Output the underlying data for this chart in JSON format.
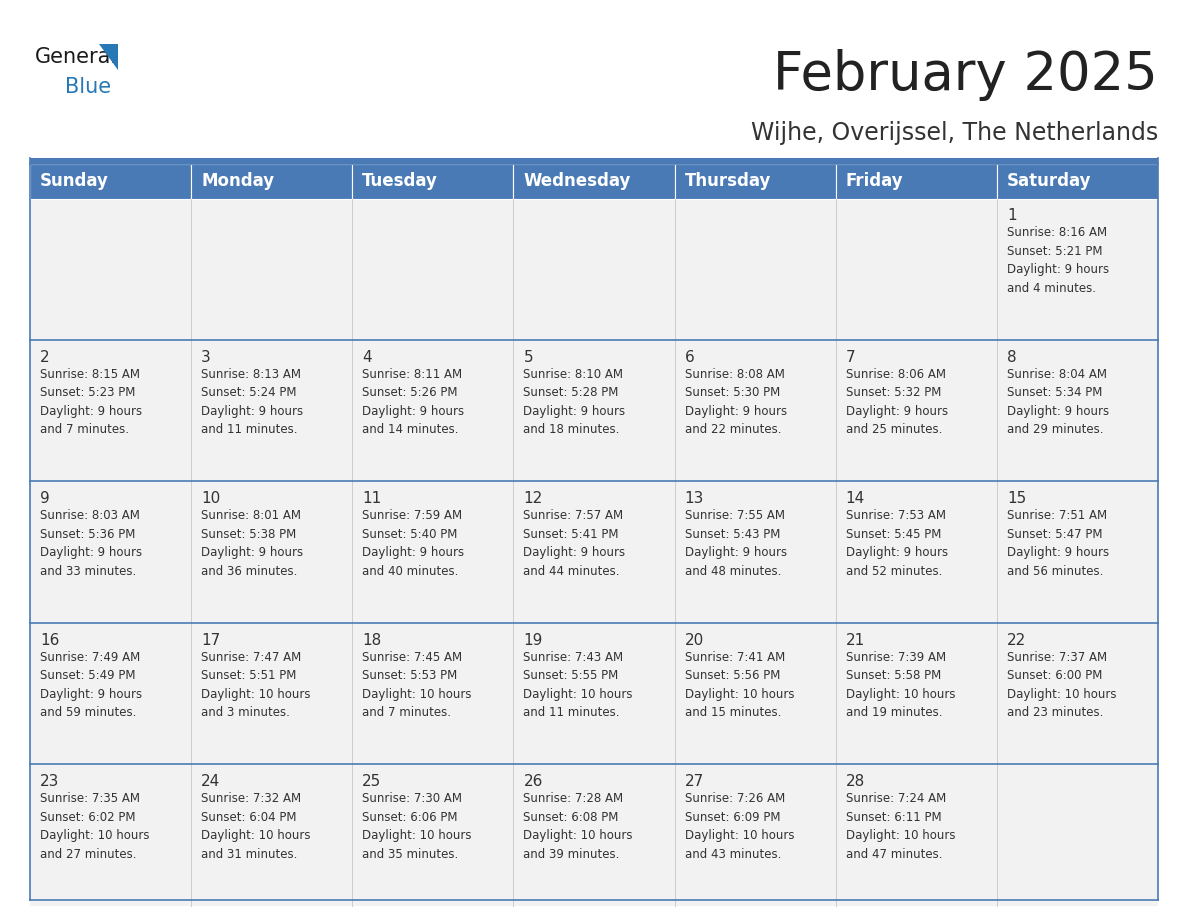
{
  "title": "February 2025",
  "subtitle": "Wijhe, Overijssel, The Netherlands",
  "header_bg": "#4a7ab5",
  "header_text_color": "#ffffff",
  "cell_bg": "#f2f2f2",
  "cell_bg_empty": "#f9f9f9",
  "border_color": "#4a7ab5",
  "row_divider_color": "#4a7ab5",
  "col_divider_color": "#cccccc",
  "text_color": "#333333",
  "day_headers": [
    "Sunday",
    "Monday",
    "Tuesday",
    "Wednesday",
    "Thursday",
    "Friday",
    "Saturday"
  ],
  "weeks": [
    [
      {
        "day": "",
        "info": ""
      },
      {
        "day": "",
        "info": ""
      },
      {
        "day": "",
        "info": ""
      },
      {
        "day": "",
        "info": ""
      },
      {
        "day": "",
        "info": ""
      },
      {
        "day": "",
        "info": ""
      },
      {
        "day": "1",
        "info": "Sunrise: 8:16 AM\nSunset: 5:21 PM\nDaylight: 9 hours\nand 4 minutes."
      }
    ],
    [
      {
        "day": "2",
        "info": "Sunrise: 8:15 AM\nSunset: 5:23 PM\nDaylight: 9 hours\nand 7 minutes."
      },
      {
        "day": "3",
        "info": "Sunrise: 8:13 AM\nSunset: 5:24 PM\nDaylight: 9 hours\nand 11 minutes."
      },
      {
        "day": "4",
        "info": "Sunrise: 8:11 AM\nSunset: 5:26 PM\nDaylight: 9 hours\nand 14 minutes."
      },
      {
        "day": "5",
        "info": "Sunrise: 8:10 AM\nSunset: 5:28 PM\nDaylight: 9 hours\nand 18 minutes."
      },
      {
        "day": "6",
        "info": "Sunrise: 8:08 AM\nSunset: 5:30 PM\nDaylight: 9 hours\nand 22 minutes."
      },
      {
        "day": "7",
        "info": "Sunrise: 8:06 AM\nSunset: 5:32 PM\nDaylight: 9 hours\nand 25 minutes."
      },
      {
        "day": "8",
        "info": "Sunrise: 8:04 AM\nSunset: 5:34 PM\nDaylight: 9 hours\nand 29 minutes."
      }
    ],
    [
      {
        "day": "9",
        "info": "Sunrise: 8:03 AM\nSunset: 5:36 PM\nDaylight: 9 hours\nand 33 minutes."
      },
      {
        "day": "10",
        "info": "Sunrise: 8:01 AM\nSunset: 5:38 PM\nDaylight: 9 hours\nand 36 minutes."
      },
      {
        "day": "11",
        "info": "Sunrise: 7:59 AM\nSunset: 5:40 PM\nDaylight: 9 hours\nand 40 minutes."
      },
      {
        "day": "12",
        "info": "Sunrise: 7:57 AM\nSunset: 5:41 PM\nDaylight: 9 hours\nand 44 minutes."
      },
      {
        "day": "13",
        "info": "Sunrise: 7:55 AM\nSunset: 5:43 PM\nDaylight: 9 hours\nand 48 minutes."
      },
      {
        "day": "14",
        "info": "Sunrise: 7:53 AM\nSunset: 5:45 PM\nDaylight: 9 hours\nand 52 minutes."
      },
      {
        "day": "15",
        "info": "Sunrise: 7:51 AM\nSunset: 5:47 PM\nDaylight: 9 hours\nand 56 minutes."
      }
    ],
    [
      {
        "day": "16",
        "info": "Sunrise: 7:49 AM\nSunset: 5:49 PM\nDaylight: 9 hours\nand 59 minutes."
      },
      {
        "day": "17",
        "info": "Sunrise: 7:47 AM\nSunset: 5:51 PM\nDaylight: 10 hours\nand 3 minutes."
      },
      {
        "day": "18",
        "info": "Sunrise: 7:45 AM\nSunset: 5:53 PM\nDaylight: 10 hours\nand 7 minutes."
      },
      {
        "day": "19",
        "info": "Sunrise: 7:43 AM\nSunset: 5:55 PM\nDaylight: 10 hours\nand 11 minutes."
      },
      {
        "day": "20",
        "info": "Sunrise: 7:41 AM\nSunset: 5:56 PM\nDaylight: 10 hours\nand 15 minutes."
      },
      {
        "day": "21",
        "info": "Sunrise: 7:39 AM\nSunset: 5:58 PM\nDaylight: 10 hours\nand 19 minutes."
      },
      {
        "day": "22",
        "info": "Sunrise: 7:37 AM\nSunset: 6:00 PM\nDaylight: 10 hours\nand 23 minutes."
      }
    ],
    [
      {
        "day": "23",
        "info": "Sunrise: 7:35 AM\nSunset: 6:02 PM\nDaylight: 10 hours\nand 27 minutes."
      },
      {
        "day": "24",
        "info": "Sunrise: 7:32 AM\nSunset: 6:04 PM\nDaylight: 10 hours\nand 31 minutes."
      },
      {
        "day": "25",
        "info": "Sunrise: 7:30 AM\nSunset: 6:06 PM\nDaylight: 10 hours\nand 35 minutes."
      },
      {
        "day": "26",
        "info": "Sunrise: 7:28 AM\nSunset: 6:08 PM\nDaylight: 10 hours\nand 39 minutes."
      },
      {
        "day": "27",
        "info": "Sunrise: 7:26 AM\nSunset: 6:09 PM\nDaylight: 10 hours\nand 43 minutes."
      },
      {
        "day": "28",
        "info": "Sunrise: 7:24 AM\nSunset: 6:11 PM\nDaylight: 10 hours\nand 47 minutes."
      },
      {
        "day": "",
        "info": ""
      }
    ]
  ],
  "logo_general_color": "#1a1a1a",
  "logo_blue_color": "#2878b5",
  "logo_triangle_color": "#2878b5",
  "title_fontsize": 38,
  "subtitle_fontsize": 17,
  "header_fontsize": 12,
  "day_num_fontsize": 11,
  "info_fontsize": 8.5
}
